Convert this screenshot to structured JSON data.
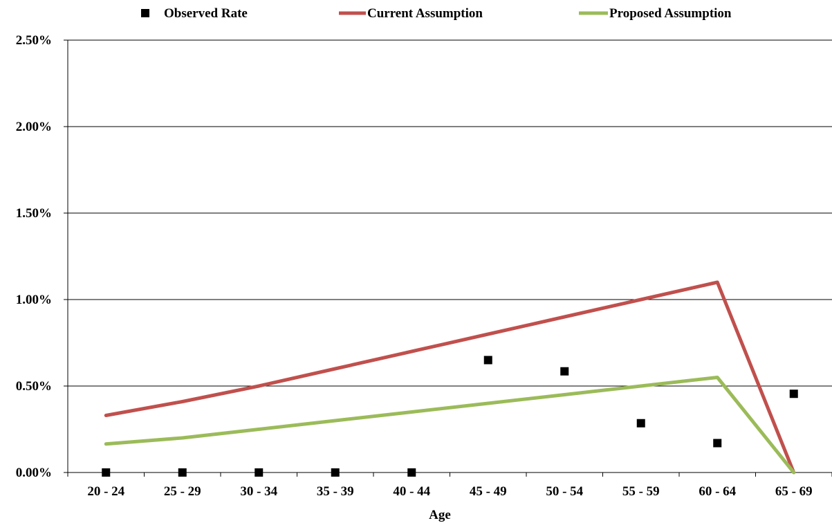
{
  "chart_data": {
    "type": "line",
    "title": "",
    "xlabel": "Age",
    "ylabel": "",
    "ylim": [
      0,
      0.025
    ],
    "yticks": [
      "0.00%",
      "0.50%",
      "1.00%",
      "1.50%",
      "2.00%",
      "2.50%"
    ],
    "ytick_values": [
      0,
      0.005,
      0.01,
      0.015,
      0.02,
      0.025
    ],
    "categories": [
      "20 - 24",
      "25 - 29",
      "30 - 34",
      "35 - 39",
      "40 - 44",
      "45 - 49",
      "50 - 54",
      "55 - 59",
      "60 - 64",
      "65 - 69"
    ],
    "grid": true,
    "legend_position": "top",
    "series": [
      {
        "name": "Observed Rate",
        "kind": "scatter",
        "marker": "square",
        "color": "#000000",
        "values": [
          0,
          0,
          0,
          0,
          0,
          0.0065,
          0.00585,
          0.00285,
          0.0017,
          0.00455
        ]
      },
      {
        "name": "Current Assumption",
        "kind": "line",
        "color": "#c0504d",
        "values": [
          0.0033,
          0.0041,
          0.005,
          0.006,
          0.007,
          0.008,
          0.009,
          0.01,
          0.011,
          0
        ]
      },
      {
        "name": "Proposed Assumption",
        "kind": "line",
        "color": "#9bbb59",
        "values": [
          0.00165,
          0.002,
          0.0025,
          0.003,
          0.0035,
          0.004,
          0.0045,
          0.005,
          0.0055,
          0
        ]
      }
    ]
  }
}
